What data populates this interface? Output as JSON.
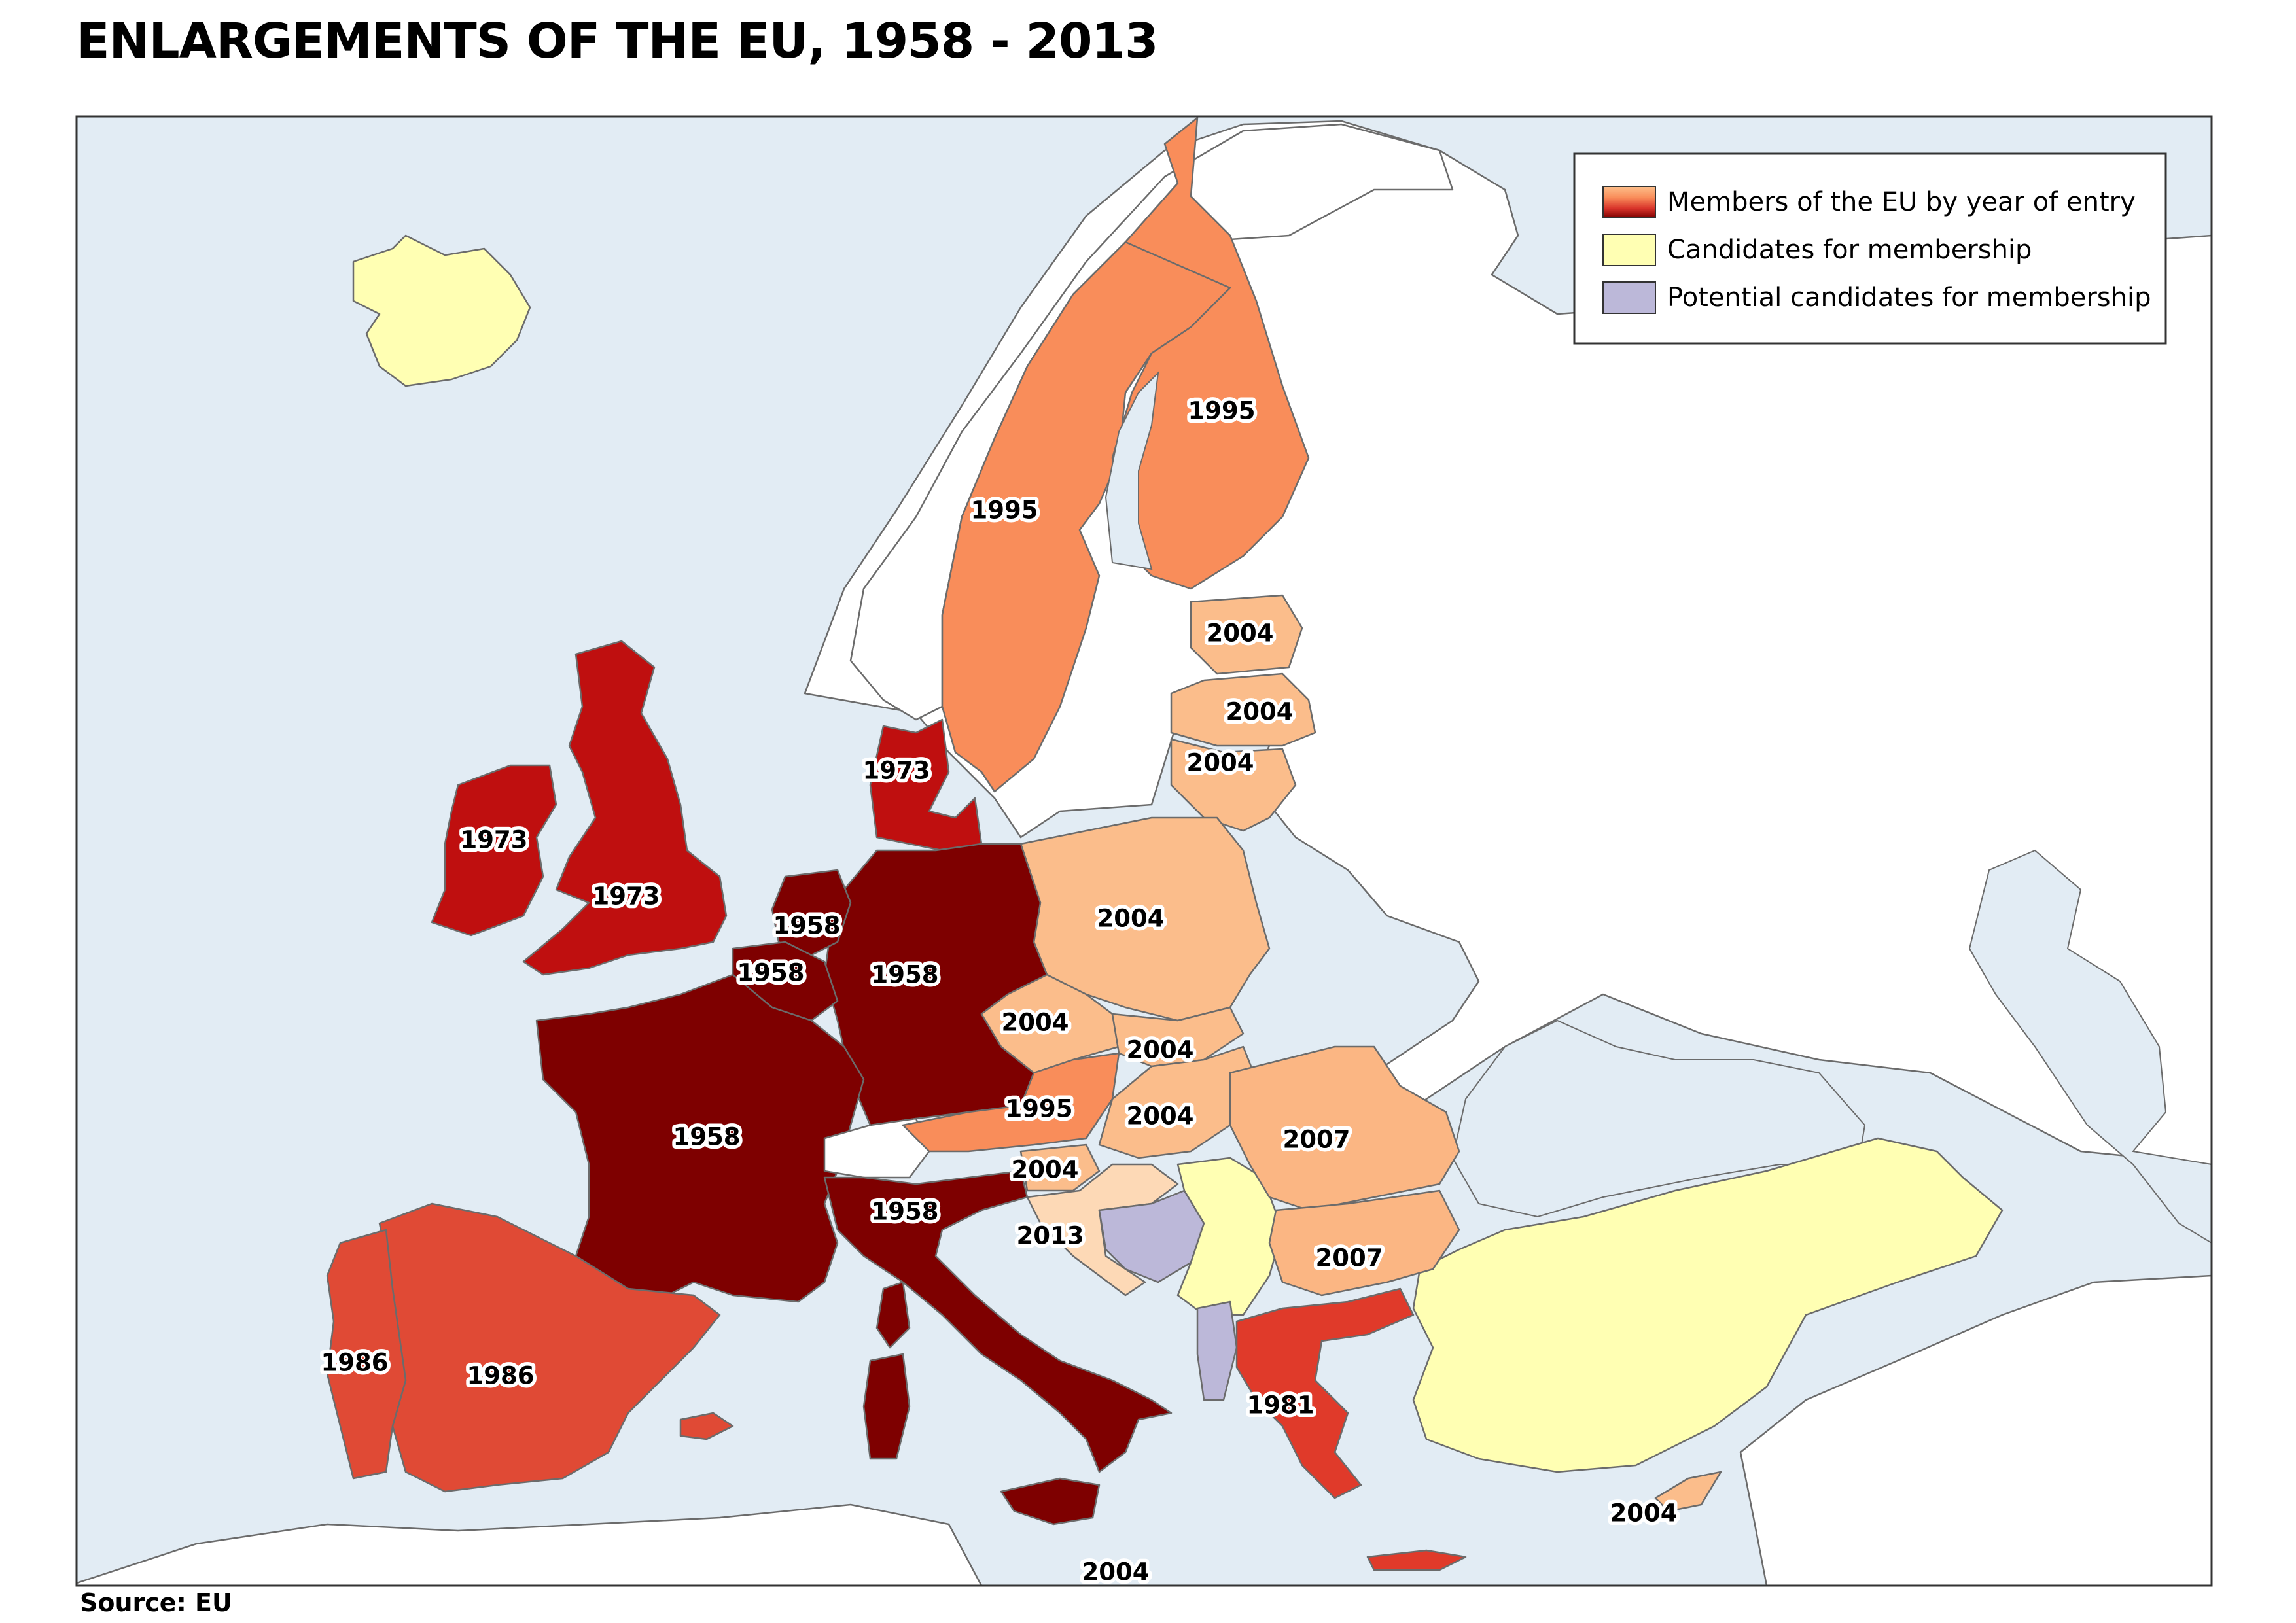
{
  "title": "ENLARGEMENTS OF THE EU, 1958 - 2013",
  "source": "Source: EU",
  "colors": {
    "sea": "#e2ecf4",
    "non_eu": "#ffffff",
    "y1958": "#7e0000",
    "y1973": "#bf0f0f",
    "y1981": "#e03a2a",
    "y1986": "#e04a35",
    "y1995": "#f98d5a",
    "y2004": "#fbbd8b",
    "y2007": "#fbb683",
    "y2013": "#fdd9b6",
    "candidate": "#ffffb3",
    "potential": "#bcb8d9",
    "lakes": "#c9dbe9"
  },
  "legend": {
    "members": "Members of the EU by year of entry",
    "candidates": "Candidates for membership",
    "potential": "Potential candidates for membership"
  },
  "labels": {
    "finland": "1995",
    "sweden": "1995",
    "estonia": "2004",
    "latvia": "2004",
    "lithuania": "2004",
    "denmark": "1973",
    "ireland": "1973",
    "uk": "1973",
    "netherlands": "1958",
    "belgium": "1958",
    "germany": "1958",
    "poland": "2004",
    "czech": "2004",
    "slovakia": "2004",
    "austria": "1995",
    "hungary": "2004",
    "slovenia": "2004",
    "croatia": "2013",
    "romania": "2007",
    "bulgaria": "2007",
    "france": "1958",
    "italy": "1958",
    "portugal": "1986",
    "spain": "1986",
    "greece": "1981",
    "cyprus": "2004",
    "malta": "2004"
  }
}
